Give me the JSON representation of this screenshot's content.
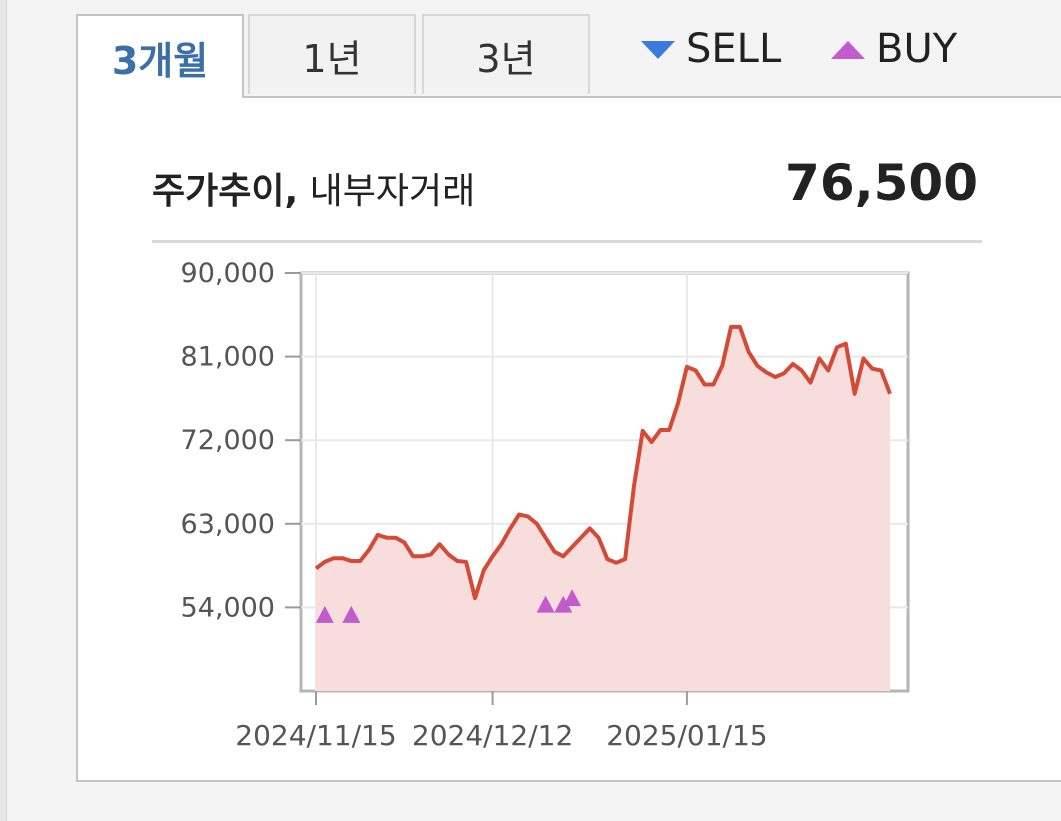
{
  "tabs": [
    {
      "label": "3개월",
      "active": true
    },
    {
      "label": "1년",
      "active": false
    },
    {
      "label": "3년",
      "active": false
    }
  ],
  "legend": {
    "sell_label": "SELL",
    "buy_label": "BUY",
    "sell_color": "#3b7be0",
    "buy_color": "#c05ccb"
  },
  "panel": {
    "title_bold": "주가추이,",
    "title_sub": "내부자거래",
    "current_price": "76,500"
  },
  "chart_data": {
    "type": "line",
    "title": "주가추이, 내부자거래",
    "y_ticks": [
      "90,000",
      "81,000",
      "72,000",
      "63,000",
      "54,000"
    ],
    "ylim": [
      45000,
      90000
    ],
    "grid": true,
    "x_ticks": [
      "2024/11/15",
      "2024/12/12",
      "2025/01/15"
    ],
    "line_color": "#d44a36",
    "area_color": "#f7dedc",
    "series": [
      {
        "values": [
          58200,
          58900,
          59300,
          59300,
          59000,
          59000,
          60200,
          61800,
          61500,
          61500,
          61000,
          59500,
          59500,
          59700,
          60800,
          59700,
          59000,
          58900,
          55000,
          58000,
          59500,
          60800,
          62500,
          64000,
          63800,
          63000,
          61500,
          60000,
          59500,
          60500,
          61500,
          62500,
          61500,
          59200,
          58800,
          59200,
          67000,
          73000,
          71800,
          73100,
          73100,
          76000,
          79900,
          79500,
          78000,
          78000,
          80000,
          84200,
          84200,
          81500,
          80000,
          79300,
          78800,
          79200,
          80200,
          79500,
          78200,
          80800,
          79500,
          82000,
          82400,
          77000,
          80800,
          79700,
          79500,
          77000
        ]
      }
    ],
    "buy_markers": [
      {
        "x": "2024/11/17",
        "y": 53200
      },
      {
        "x": "2024/11/20",
        "y": 53200
      },
      {
        "x": "2024/12/20",
        "y": 54300
      },
      {
        "x": "2024/12/22",
        "y": 54300
      },
      {
        "x": "2024/12/23",
        "y": 55000
      }
    ]
  }
}
